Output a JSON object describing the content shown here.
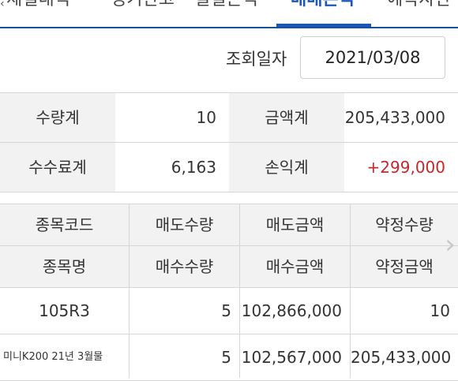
{
  "tabs": [
    {
      "label": "체결내역"
    },
    {
      "label": "정기잔고"
    },
    {
      "label": "일별손익"
    },
    {
      "label": "매매손익"
    },
    {
      "label": "예탁자산"
    }
  ],
  "query": {
    "label": "조회일자",
    "date": "2021/03/08"
  },
  "summary": {
    "qty_label": "수량계",
    "qty_value": "10",
    "amount_label": "금액계",
    "amount_value": "205,433,000",
    "fee_label": "수수료계",
    "fee_value": "6,163",
    "pnl_label": "손익계",
    "pnl_value": "+299,000"
  },
  "grid": {
    "headers_row1": [
      "종목코드",
      "매도수량",
      "매도금액",
      "약정수량"
    ],
    "headers_row2": [
      "종목명",
      "매수수량",
      "매수금액",
      "약정금액"
    ],
    "rows": [
      [
        "105R3",
        "5",
        "102,866,000",
        "10"
      ],
      [
        "미니K200 21년 3월물",
        "5",
        "102,567,000",
        "205,433,000"
      ]
    ]
  },
  "colors": {
    "accent": "#1b57b5",
    "positive": "#c8262a",
    "header_bg": "#f2f2f2"
  },
  "icons": {
    "next": "chevron-right-icon",
    "prev": "chevron-left-icon"
  }
}
